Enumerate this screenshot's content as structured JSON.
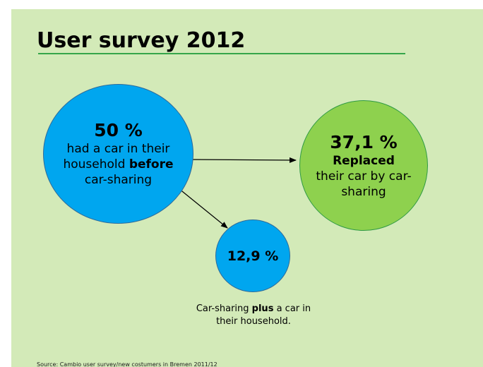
{
  "slide": {
    "title": "User survey 2012",
    "colors": {
      "background": "#d3eab8",
      "title_rule": "#36a64a",
      "blue_circle": "#00a6ef",
      "green_circle": "#8ed14e"
    }
  },
  "nodes": {
    "before": {
      "percent": "50 %",
      "text_before": "had a car in their household ",
      "text_bold": "before",
      "text_after": " car-sharing"
    },
    "replaced": {
      "percent": "37,1 %",
      "text_bold": "Replaced",
      "text_after": "their car by car-sharing"
    },
    "plus": {
      "percent": "12,9 %",
      "caption_before": "Car-sharing ",
      "caption_bold": "plus",
      "caption_after": " a car in their household."
    }
  },
  "edges": [
    {
      "from": "before",
      "to": "replaced"
    },
    {
      "from": "before",
      "to": "plus"
    }
  ],
  "source": "Source: Cambio user survey/new costumers in Bremen 2011/12"
}
